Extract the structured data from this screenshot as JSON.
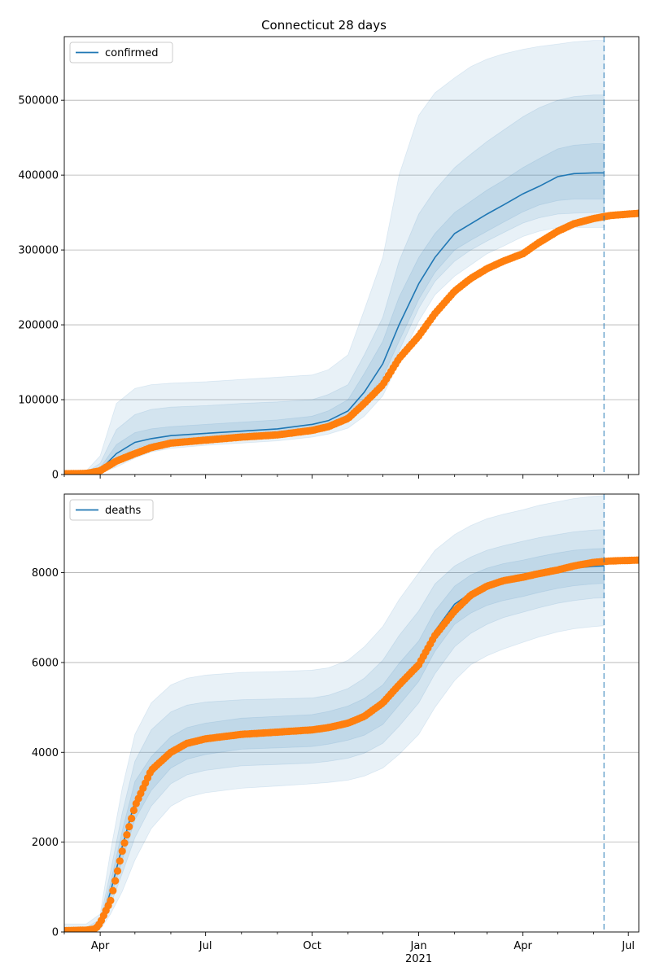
{
  "figure": {
    "title": "Connecticut 28 days"
  },
  "colors": {
    "model": "#1f77b4",
    "observed": "#ff7f0e",
    "band": "#1f77b4",
    "grid": "#b0b0b0",
    "cutoff": "#1f77b4"
  },
  "x_axis": {
    "range": [
      "2020-03-01",
      "2021-07-10"
    ],
    "major_ticks": [
      {
        "date": "2020-04-01",
        "label": "Apr"
      },
      {
        "date": "2020-07-01",
        "label": "Jul"
      },
      {
        "date": "2020-10-01",
        "label": "Oct"
      },
      {
        "date": "2021-01-01",
        "label": "Jan"
      },
      {
        "date": "2021-04-01",
        "label": "Apr"
      },
      {
        "date": "2021-07-01",
        "label": "Jul"
      }
    ],
    "year_label": {
      "date": "2021-01-01",
      "label": "2021"
    },
    "minor_ticks": [
      "2020-03-01",
      "2020-05-01",
      "2020-06-01",
      "2020-08-01",
      "2020-09-01",
      "2020-11-01",
      "2020-12-01",
      "2021-02-01",
      "2021-03-01",
      "2021-05-01",
      "2021-06-01"
    ]
  },
  "cutoff_date": "2021-06-10",
  "chart_data": [
    {
      "type": "line",
      "title": "Connecticut 28 days",
      "legend": {
        "label": "confirmed",
        "position": "top-left"
      },
      "grid": true,
      "ylim": [
        0,
        585000
      ],
      "yticks": [
        0,
        100000,
        200000,
        300000,
        400000,
        500000
      ],
      "model": {
        "name": "confirmed",
        "x": [
          "2020-03-01",
          "2020-03-20",
          "2020-04-01",
          "2020-04-15",
          "2020-05-01",
          "2020-05-15",
          "2020-06-01",
          "2020-07-01",
          "2020-08-01",
          "2020-09-01",
          "2020-10-01",
          "2020-10-15",
          "2020-11-01",
          "2020-11-15",
          "2020-12-01",
          "2020-12-15",
          "2021-01-01",
          "2021-01-15",
          "2021-02-01",
          "2021-02-15",
          "2021-03-01",
          "2021-03-15",
          "2021-04-01",
          "2021-04-15",
          "2021-05-01",
          "2021-05-15",
          "2021-06-01",
          "2021-06-10"
        ],
        "y": [
          2000,
          2000,
          6000,
          28000,
          43000,
          48000,
          52000,
          55000,
          58000,
          61000,
          67000,
          72000,
          85000,
          110000,
          148000,
          200000,
          255000,
          290000,
          322000,
          335000,
          348000,
          360000,
          375000,
          385000,
          398000,
          402000,
          403000,
          403000
        ]
      },
      "bands": [
        {
          "level": "outer",
          "lower": [
            0,
            0,
            2000,
            10000,
            22000,
            30000,
            35000,
            39000,
            42000,
            45000,
            50000,
            54000,
            62000,
            78000,
            105000,
            150000,
            205000,
            240000,
            265000,
            280000,
            295000,
            305000,
            318000,
            325000,
            330000,
            330000,
            330000,
            330000
          ],
          "upper": [
            5000,
            5000,
            25000,
            95000,
            115000,
            120000,
            122000,
            124000,
            127000,
            130000,
            133000,
            140000,
            160000,
            220000,
            290000,
            400000,
            480000,
            510000,
            530000,
            545000,
            555000,
            562000,
            568000,
            572000,
            575000,
            578000,
            580000,
            580000
          ]
        },
        {
          "level": "middle",
          "lower": [
            0,
            0,
            3000,
            15000,
            30000,
            37000,
            42000,
            45000,
            48000,
            51000,
            56000,
            60000,
            70000,
            90000,
            120000,
            165000,
            222000,
            258000,
            285000,
            300000,
            312000,
            323000,
            336000,
            343000,
            348000,
            349000,
            350000,
            350000
          ],
          "upper": [
            3000,
            3000,
            15000,
            60000,
            80000,
            87000,
            90000,
            92000,
            95000,
            97000,
            100000,
            107000,
            120000,
            160000,
            210000,
            285000,
            348000,
            380000,
            410000,
            428000,
            445000,
            460000,
            478000,
            490000,
            500000,
            505000,
            507000,
            507000
          ]
        },
        {
          "level": "inner",
          "lower": [
            1000,
            1000,
            4000,
            20000,
            35000,
            41000,
            46000,
            49000,
            52000,
            55000,
            60000,
            65000,
            76000,
            98000,
            130000,
            178000,
            234000,
            270000,
            300000,
            313000,
            325000,
            337000,
            351000,
            360000,
            366000,
            368000,
            368000,
            368000
          ],
          "upper": [
            2500,
            2500,
            9000,
            40000,
            56000,
            61000,
            64000,
            67000,
            70000,
            73000,
            78000,
            85000,
            100000,
            135000,
            178000,
            237000,
            290000,
            322000,
            350000,
            365000,
            380000,
            393000,
            410000,
            422000,
            435000,
            440000,
            442000,
            442000
          ]
        }
      ],
      "observed": {
        "name": "observed",
        "x": [
          "2020-03-01",
          "2020-03-20",
          "2020-04-01",
          "2020-04-15",
          "2020-05-01",
          "2020-05-15",
          "2020-06-01",
          "2020-07-01",
          "2020-08-01",
          "2020-09-01",
          "2020-10-01",
          "2020-10-15",
          "2020-11-01",
          "2020-11-15",
          "2020-12-01",
          "2020-12-15",
          "2021-01-01",
          "2021-01-15",
          "2021-02-01",
          "2021-02-15",
          "2021-03-01",
          "2021-03-15",
          "2021-04-01",
          "2021-04-15",
          "2021-05-01",
          "2021-05-15",
          "2021-06-01",
          "2021-06-15",
          "2021-07-10"
        ],
        "y": [
          1000,
          1500,
          5000,
          18000,
          28000,
          36000,
          42000,
          46000,
          50000,
          53000,
          59000,
          64000,
          75000,
          95000,
          120000,
          155000,
          185000,
          215000,
          245000,
          262000,
          275000,
          285000,
          295000,
          310000,
          325000,
          335000,
          342000,
          346000,
          349000
        ]
      }
    },
    {
      "type": "line",
      "legend": {
        "label": "deaths",
        "position": "top-left"
      },
      "grid": true,
      "ylim": [
        0,
        9750
      ],
      "yticks": [
        0,
        2000,
        4000,
        6000,
        8000
      ],
      "model": {
        "name": "deaths",
        "x": [
          "2020-03-01",
          "2020-03-20",
          "2020-04-01",
          "2020-04-10",
          "2020-04-20",
          "2020-05-01",
          "2020-05-15",
          "2020-06-01",
          "2020-06-15",
          "2020-07-01",
          "2020-08-01",
          "2020-09-01",
          "2020-10-01",
          "2020-10-15",
          "2020-11-01",
          "2020-11-15",
          "2020-12-01",
          "2020-12-15",
          "2021-01-01",
          "2021-01-15",
          "2021-02-01",
          "2021-02-15",
          "2021-03-01",
          "2021-03-15",
          "2021-04-01",
          "2021-04-15",
          "2021-05-01",
          "2021-05-15",
          "2021-06-01",
          "2021-06-10"
        ],
        "y": [
          20,
          20,
          150,
          900,
          1900,
          2900,
          3500,
          4000,
          4200,
          4300,
          4420,
          4460,
          4500,
          4550,
          4650,
          4780,
          5050,
          5500,
          6000,
          6700,
          7300,
          7550,
          7700,
          7800,
          7880,
          7960,
          8040,
          8100,
          8140,
          8150
        ]
      },
      "bands": [
        {
          "level": "outer",
          "lower": [
            0,
            0,
            50,
            400,
            900,
            1600,
            2300,
            2800,
            3000,
            3100,
            3200,
            3250,
            3300,
            3330,
            3380,
            3470,
            3650,
            3950,
            4400,
            5000,
            5600,
            5950,
            6150,
            6300,
            6450,
            6570,
            6680,
            6750,
            6800,
            6820
          ],
          "upper": [
            180,
            180,
            400,
            1800,
            3200,
            4400,
            5100,
            5500,
            5650,
            5720,
            5780,
            5800,
            5830,
            5880,
            6050,
            6350,
            6800,
            7400,
            8000,
            8500,
            8850,
            9050,
            9200,
            9300,
            9400,
            9500,
            9580,
            9650,
            9700,
            9720
          ]
        },
        {
          "level": "middle",
          "lower": [
            10,
            10,
            80,
            600,
            1300,
            2100,
            2800,
            3300,
            3500,
            3600,
            3700,
            3730,
            3760,
            3800,
            3870,
            3980,
            4200,
            4580,
            5100,
            5750,
            6350,
            6650,
            6850,
            7000,
            7120,
            7220,
            7320,
            7380,
            7430,
            7440
          ],
          "upper": [
            100,
            100,
            280,
            1350,
            2650,
            3800,
            4500,
            4900,
            5050,
            5120,
            5170,
            5190,
            5210,
            5270,
            5420,
            5650,
            6050,
            6600,
            7150,
            7750,
            8150,
            8350,
            8500,
            8600,
            8700,
            8780,
            8850,
            8910,
            8950,
            8960
          ]
        },
        {
          "level": "inner",
          "lower": [
            15,
            15,
            110,
            750,
            1600,
            2500,
            3150,
            3650,
            3850,
            3950,
            4070,
            4100,
            4130,
            4180,
            4270,
            4380,
            4620,
            5050,
            5580,
            6250,
            6850,
            7100,
            7270,
            7380,
            7470,
            7560,
            7650,
            7710,
            7750,
            7760
          ],
          "upper": [
            50,
            50,
            200,
            1100,
            2250,
            3350,
            3900,
            4350,
            4550,
            4650,
            4760,
            4800,
            4840,
            4910,
            5030,
            5200,
            5500,
            5980,
            6480,
            7150,
            7700,
            7950,
            8100,
            8200,
            8280,
            8360,
            8440,
            8500,
            8530,
            8540
          ]
        }
      ],
      "observed": {
        "name": "observed",
        "x": [
          "2020-03-01",
          "2020-03-20",
          "2020-03-28",
          "2020-04-01",
          "2020-04-10",
          "2020-04-20",
          "2020-05-01",
          "2020-05-15",
          "2020-06-01",
          "2020-06-15",
          "2020-07-01",
          "2020-08-01",
          "2020-09-01",
          "2020-10-01",
          "2020-10-15",
          "2020-11-01",
          "2020-11-15",
          "2020-12-01",
          "2020-12-15",
          "2021-01-01",
          "2021-01-15",
          "2021-02-01",
          "2021-02-15",
          "2021-03-01",
          "2021-03-15",
          "2021-04-01",
          "2021-04-15",
          "2021-05-01",
          "2021-05-15",
          "2021-06-01",
          "2021-06-15",
          "2021-07-10"
        ],
        "y": [
          30,
          40,
          70,
          200,
          700,
          1800,
          2800,
          3600,
          4000,
          4200,
          4300,
          4400,
          4450,
          4500,
          4550,
          4650,
          4800,
          5100,
          5500,
          5950,
          6600,
          7150,
          7500,
          7700,
          7820,
          7900,
          7980,
          8060,
          8150,
          8230,
          8260,
          8280
        ]
      }
    }
  ]
}
